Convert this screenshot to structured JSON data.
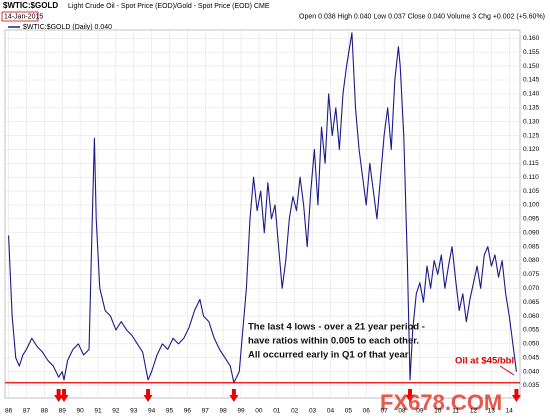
{
  "chart_data": {
    "type": "line",
    "title": "$WTIC:$GOLD",
    "subtitle": "Light Crude Oil - Spot Price (EOD)/Gold - Spot Price (EOD) CME",
    "date": "14-Jan-2015",
    "quote": "Open 0.038  High 0.040  Low 0.037  Close 0.040  Volume 3  Chg +0.002 (+5.60%)",
    "legend_label": "$WTIC:$GOLD (Daily) 0.040",
    "annotation": [
      "The last 4 lows - over a 21 year period -",
      "have ratios within 0.005 to each other.",
      "All occurred early in Q1 of that year"
    ],
    "oil_note": "Oil at $45/bbl",
    "watermark": "FX678.COM",
    "support_level": 0.036,
    "arrow_x": [
      1988.8,
      1989.1,
      1993.8,
      1998.6,
      2008.45,
      2014.4
    ],
    "xlim": [
      1985.8,
      2014.6
    ],
    "xticks": [
      {
        "value": 1986,
        "label": "86"
      },
      {
        "value": 1987,
        "label": "87"
      },
      {
        "value": 1988,
        "label": "88"
      },
      {
        "value": 1989,
        "label": "89"
      },
      {
        "value": 1990,
        "label": "90"
      },
      {
        "value": 1991,
        "label": "91"
      },
      {
        "value": 1992,
        "label": "92"
      },
      {
        "value": 1993,
        "label": "93"
      },
      {
        "value": 1994,
        "label": "94"
      },
      {
        "value": 1995,
        "label": "95"
      },
      {
        "value": 1996,
        "label": "96"
      },
      {
        "value": 1997,
        "label": "97"
      },
      {
        "value": 1998,
        "label": "98"
      },
      {
        "value": 1999,
        "label": "99"
      },
      {
        "value": 2000,
        "label": "00"
      },
      {
        "value": 2001,
        "label": "01"
      },
      {
        "value": 2002,
        "label": "02"
      },
      {
        "value": 2003,
        "label": "03"
      },
      {
        "value": 2004,
        "label": "04"
      },
      {
        "value": 2005,
        "label": "05"
      },
      {
        "value": 2006,
        "label": "06"
      },
      {
        "value": 2007,
        "label": "07"
      },
      {
        "value": 2008,
        "label": "08"
      },
      {
        "value": 2009,
        "label": "09"
      },
      {
        "value": 2010,
        "label": "10"
      },
      {
        "value": 2011,
        "label": "11"
      },
      {
        "value": 2012,
        "label": "12"
      },
      {
        "value": 2013,
        "label": "13"
      },
      {
        "value": 2014,
        "label": "14"
      }
    ],
    "ylim": [
      0.0305,
      0.163
    ],
    "yticks": [
      {
        "value": 0.035,
        "label": "0.035"
      },
      {
        "value": 0.04,
        "label": "0.040"
      },
      {
        "value": 0.045,
        "label": "0.045"
      },
      {
        "value": 0.05,
        "label": "0.050"
      },
      {
        "value": 0.055,
        "label": "0.055"
      },
      {
        "value": 0.06,
        "label": "0.060"
      },
      {
        "value": 0.065,
        "label": "0.065"
      },
      {
        "value": 0.07,
        "label": "0.070"
      },
      {
        "value": 0.075,
        "label": "0.075"
      },
      {
        "value": 0.08,
        "label": "0.080"
      },
      {
        "value": 0.085,
        "label": "0.085"
      },
      {
        "value": 0.09,
        "label": "0.090"
      },
      {
        "value": 0.095,
        "label": "0.095"
      },
      {
        "value": 0.1,
        "label": "0.100"
      },
      {
        "value": 0.105,
        "label": "0.105"
      },
      {
        "value": 0.11,
        "label": "0.110"
      },
      {
        "value": 0.115,
        "label": "0.115"
      },
      {
        "value": 0.12,
        "label": "0.120"
      },
      {
        "value": 0.125,
        "label": "0.125"
      },
      {
        "value": 0.13,
        "label": "0.130"
      },
      {
        "value": 0.135,
        "label": "0.135"
      },
      {
        "value": 0.14,
        "label": "0.140"
      },
      {
        "value": 0.145,
        "label": "0.145"
      },
      {
        "value": 0.15,
        "label": "0.150"
      },
      {
        "value": 0.155,
        "label": "0.155"
      },
      {
        "value": 0.16,
        "label": "0.160"
      }
    ],
    "grid": true,
    "series": [
      {
        "name": "$WTIC:$GOLD",
        "color": "#1a1a8c",
        "x": [
          1986.0,
          1986.2,
          1986.4,
          1986.6,
          1986.8,
          1987.0,
          1987.3,
          1987.6,
          1987.9,
          1988.2,
          1988.5,
          1988.8,
          1989.0,
          1989.1,
          1989.3,
          1989.6,
          1989.9,
          1990.2,
          1990.5,
          1990.7,
          1990.8,
          1990.9,
          1991.1,
          1991.4,
          1991.7,
          1992.0,
          1992.3,
          1992.6,
          1992.9,
          1993.2,
          1993.5,
          1993.8,
          1994.0,
          1994.3,
          1994.6,
          1994.9,
          1995.2,
          1995.5,
          1995.8,
          1996.1,
          1996.4,
          1996.7,
          1996.9,
          1997.2,
          1997.5,
          1997.8,
          1998.1,
          1998.4,
          1998.6,
          1998.9,
          1999.1,
          1999.3,
          1999.5,
          1999.7,
          1999.9,
          2000.1,
          2000.3,
          2000.5,
          2000.7,
          2000.9,
          2001.1,
          2001.3,
          2001.5,
          2001.7,
          2001.9,
          2002.1,
          2002.3,
          2002.5,
          2002.7,
          2002.9,
          2003.1,
          2003.3,
          2003.5,
          2003.7,
          2003.9,
          2004.1,
          2004.3,
          2004.5,
          2004.7,
          2004.9,
          2005.1,
          2005.2,
          2005.4,
          2005.6,
          2005.8,
          2006.0,
          2006.2,
          2006.4,
          2006.6,
          2006.8,
          2007.0,
          2007.2,
          2007.4,
          2007.6,
          2007.8,
          2007.9,
          2008.1,
          2008.3,
          2008.45,
          2008.6,
          2008.8,
          2009.0,
          2009.2,
          2009.4,
          2009.6,
          2009.8,
          2010.0,
          2010.2,
          2010.4,
          2010.6,
          2010.8,
          2011.0,
          2011.2,
          2011.4,
          2011.6,
          2011.8,
          2012.0,
          2012.2,
          2012.4,
          2012.6,
          2012.8,
          2013.0,
          2013.2,
          2013.4,
          2013.6,
          2013.8,
          2014.0,
          2014.2,
          2014.4
        ],
        "values": [
          0.089,
          0.06,
          0.045,
          0.042,
          0.046,
          0.048,
          0.052,
          0.049,
          0.047,
          0.044,
          0.042,
          0.038,
          0.04,
          0.037,
          0.044,
          0.048,
          0.05,
          0.046,
          0.048,
          0.1,
          0.124,
          0.095,
          0.07,
          0.062,
          0.06,
          0.055,
          0.058,
          0.055,
          0.053,
          0.05,
          0.047,
          0.037,
          0.04,
          0.046,
          0.05,
          0.048,
          0.052,
          0.05,
          0.052,
          0.056,
          0.062,
          0.066,
          0.06,
          0.058,
          0.052,
          0.048,
          0.045,
          0.042,
          0.036,
          0.04,
          0.055,
          0.07,
          0.095,
          0.11,
          0.098,
          0.105,
          0.09,
          0.108,
          0.095,
          0.1,
          0.085,
          0.07,
          0.08,
          0.095,
          0.103,
          0.098,
          0.11,
          0.1,
          0.085,
          0.105,
          0.12,
          0.1,
          0.128,
          0.115,
          0.14,
          0.125,
          0.135,
          0.12,
          0.14,
          0.15,
          0.158,
          0.162,
          0.135,
          0.12,
          0.11,
          0.1,
          0.115,
          0.105,
          0.095,
          0.11,
          0.125,
          0.135,
          0.12,
          0.145,
          0.157,
          0.15,
          0.125,
          0.08,
          0.037,
          0.055,
          0.068,
          0.072,
          0.065,
          0.078,
          0.07,
          0.08,
          0.075,
          0.082,
          0.07,
          0.078,
          0.085,
          0.073,
          0.062,
          0.068,
          0.058,
          0.066,
          0.072,
          0.078,
          0.07,
          0.082,
          0.085,
          0.078,
          0.082,
          0.074,
          0.08,
          0.068,
          0.06,
          0.05,
          0.04
        ]
      }
    ]
  }
}
